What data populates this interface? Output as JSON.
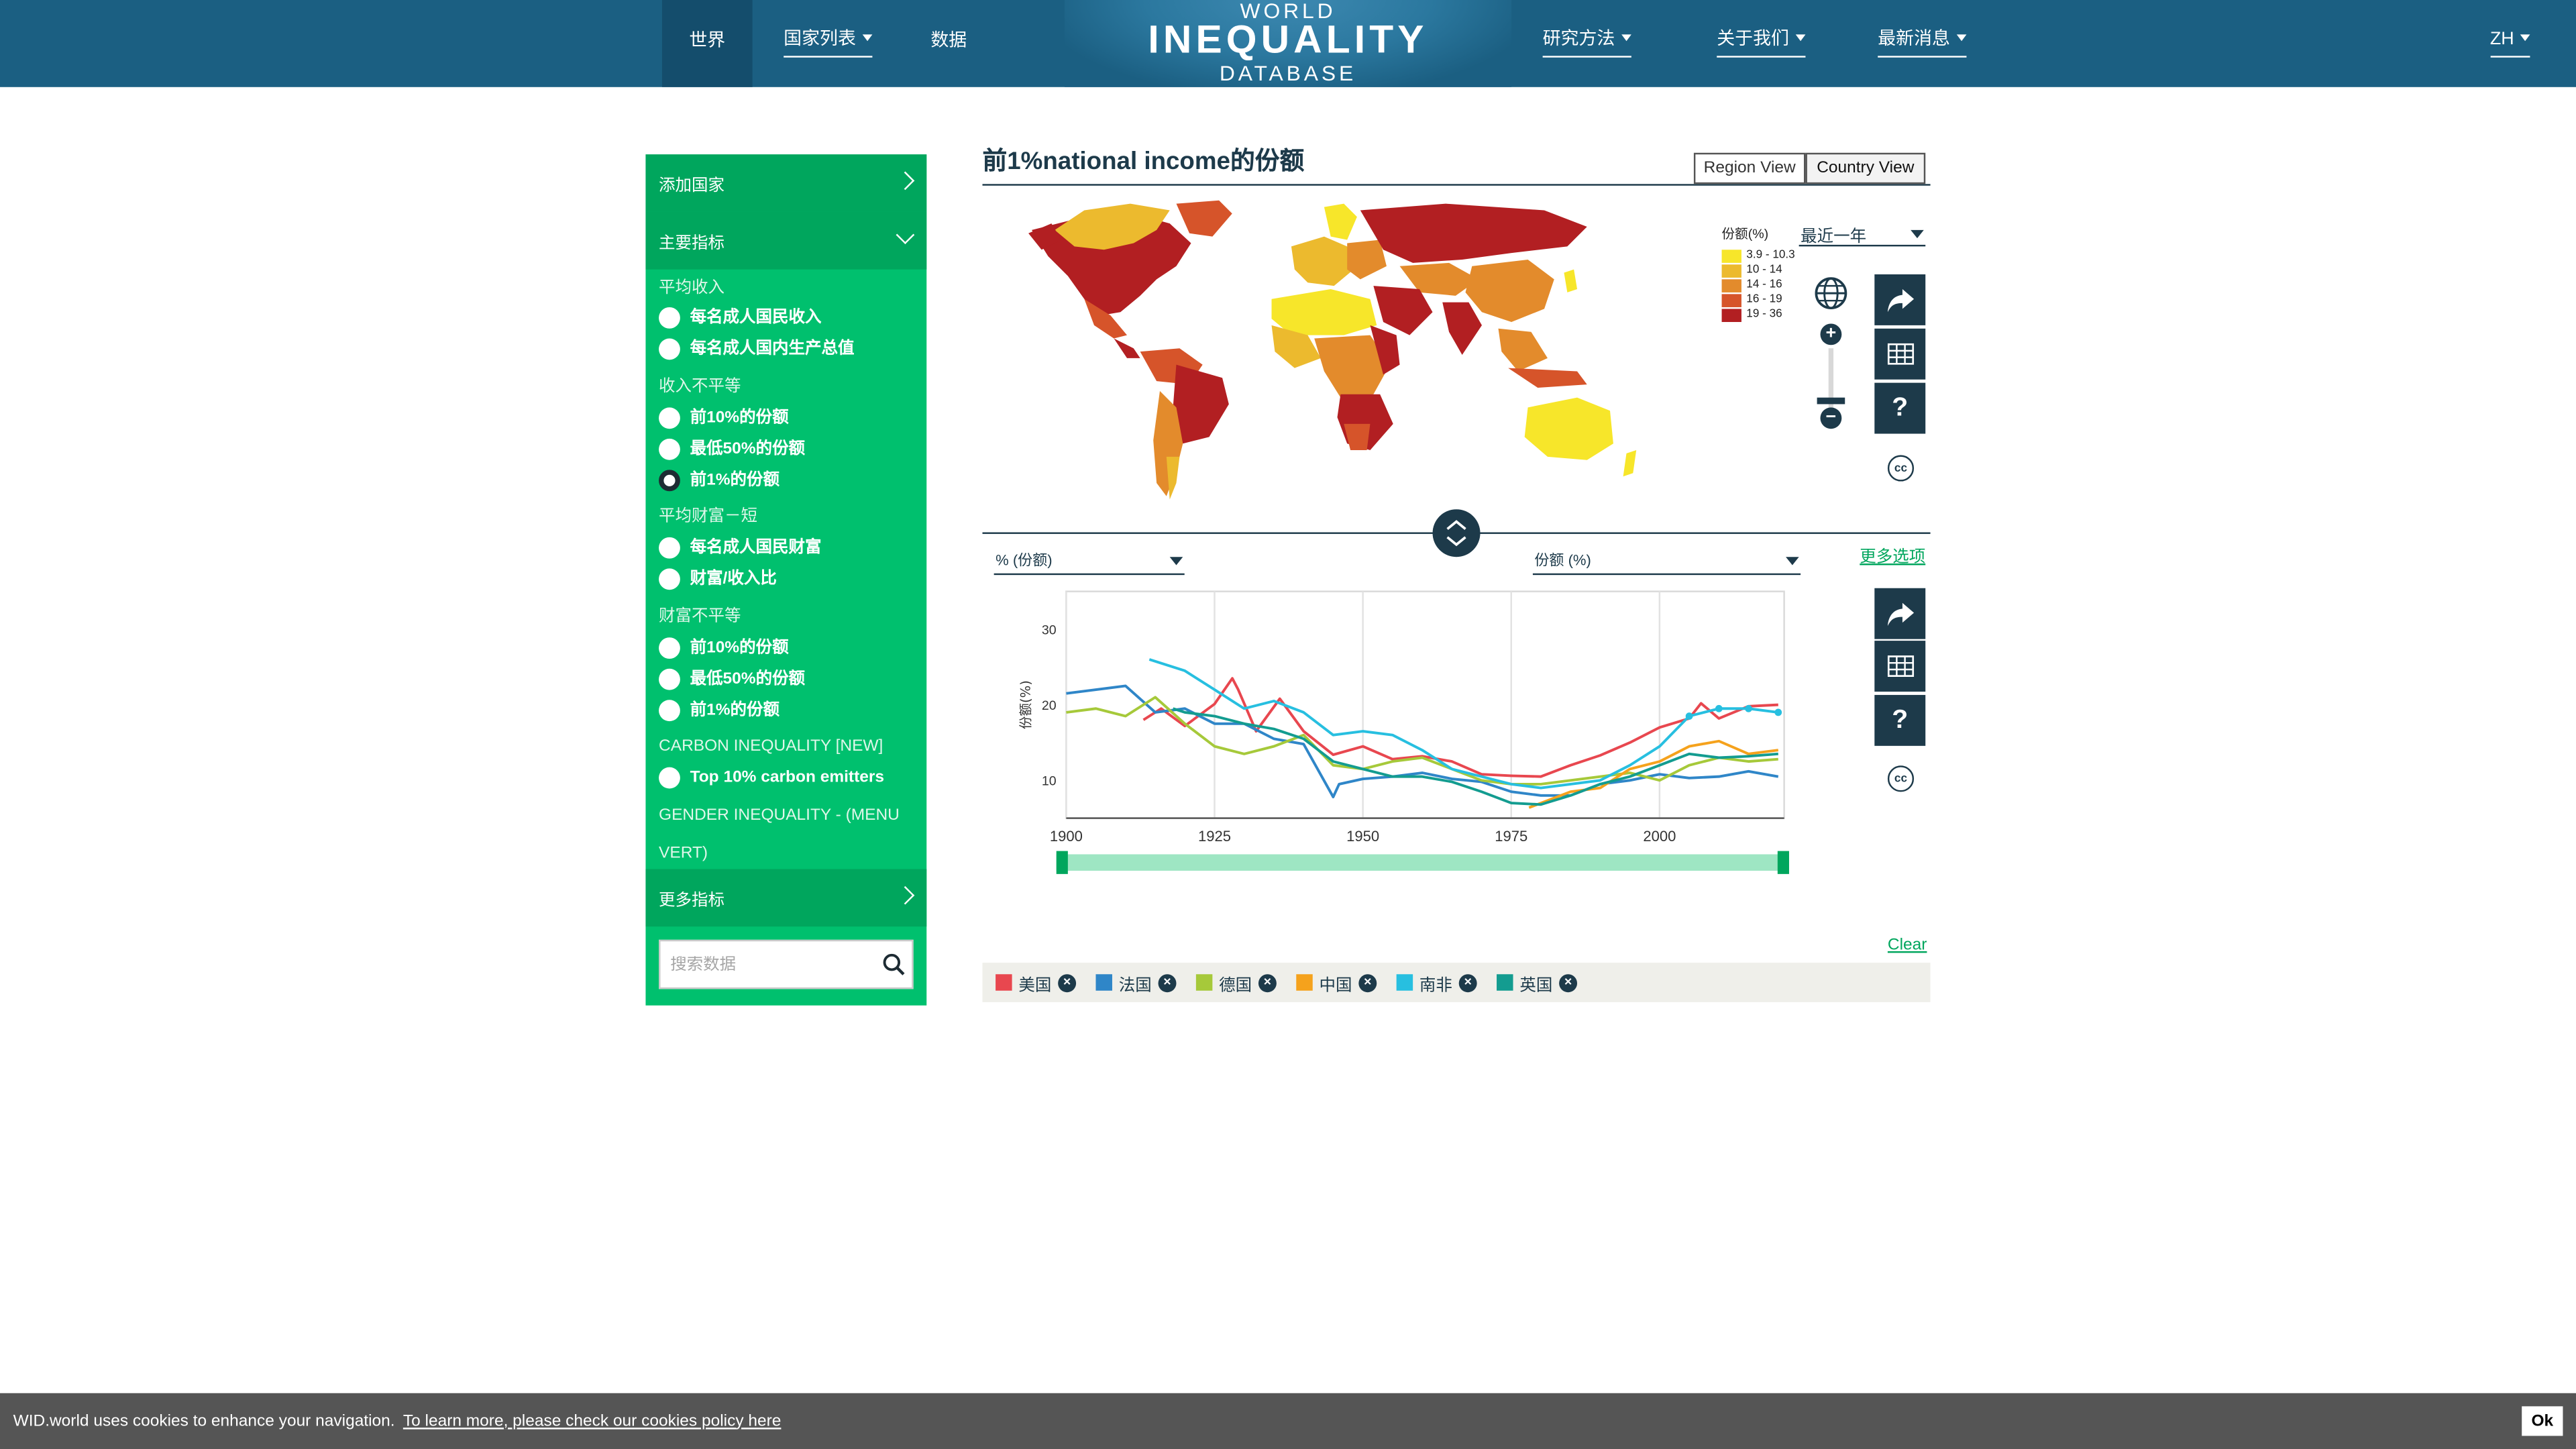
{
  "header": {
    "nav_left": [
      {
        "label": "世界",
        "active": true,
        "dropdown": false
      },
      {
        "label": "国家列表",
        "active": false,
        "dropdown": true
      },
      {
        "label": "数据",
        "active": false,
        "dropdown": false
      }
    ],
    "logo": {
      "line1": "WORLD",
      "line2": "INEQUALITY",
      "line3": "DATABASE"
    },
    "nav_right": [
      {
        "label": "研究方法",
        "dropdown": true
      },
      {
        "label": "关于我们",
        "dropdown": true
      },
      {
        "label": "最新消息",
        "dropdown": true
      }
    ],
    "language": "ZH"
  },
  "sidebar": {
    "add_country": "添加国家",
    "main_indicators": "主要指标",
    "groups": [
      {
        "title": "平均收入",
        "options": [
          {
            "label": "每名成人国民收入",
            "checked": false
          },
          {
            "label": "每名成人国内生产总值",
            "checked": false
          }
        ]
      },
      {
        "title": "收入不平等",
        "options": [
          {
            "label": "前10%的份额",
            "checked": false
          },
          {
            "label": "最低50%的份额",
            "checked": false
          },
          {
            "label": "前1%的份额",
            "checked": true
          }
        ]
      },
      {
        "title": "平均财富－短",
        "options": [
          {
            "label": "每名成人国民财富",
            "checked": false
          },
          {
            "label": "财富/收入比",
            "checked": false
          }
        ]
      },
      {
        "title": "财富不平等",
        "options": [
          {
            "label": "前10%的份额",
            "checked": false
          },
          {
            "label": "最低50%的份额",
            "checked": false
          },
          {
            "label": "前1%的份额",
            "checked": false
          }
        ]
      },
      {
        "title": "CARBON INEQUALITY [NEW]",
        "options": [
          {
            "label": "Top 10% carbon emitters",
            "checked": false
          }
        ]
      },
      {
        "title": "GENDER INEQUALITY - (MENU",
        "title2": "VERT)",
        "options": []
      }
    ],
    "more_indicators": "更多指标",
    "search_placeholder": "搜索数据"
  },
  "main": {
    "title": "前1%national income的份额",
    "views": [
      "Region View",
      "Country View"
    ],
    "active_view": "Country View",
    "map_legend": {
      "title": "份额(%)",
      "items": [
        {
          "label": "3.9 - 10.3",
          "color": "#f7e62a"
        },
        {
          "label": "10 - 14",
          "color": "#ecba2e"
        },
        {
          "label": "14 - 16",
          "color": "#e38b2c"
        },
        {
          "label": "16 - 19",
          "color": "#d6542a"
        },
        {
          "label": "19 - 36",
          "color": "#b21f22"
        }
      ]
    },
    "year_select": "最近一年",
    "selector_left": "% (份额)",
    "selector_right": "份额 (%)",
    "more_options": "更多选项",
    "clear": "Clear"
  },
  "chart_data": {
    "type": "line",
    "ylabel": "份额(%)",
    "xlim": [
      1900,
      2021
    ],
    "ylim": [
      5,
      35
    ],
    "x_ticks": [
      1900,
      1925,
      1950,
      1975,
      2000
    ],
    "y_ticks": [
      10,
      20,
      30
    ],
    "series": [
      {
        "name": "美国",
        "color": "#e8474f",
        "x": [
          1913,
          1916,
          1920,
          1925,
          1928,
          1929,
          1932,
          1936,
          1940,
          1945,
          1950,
          1955,
          1960,
          1965,
          1970,
          1975,
          1980,
          1985,
          1990,
          1995,
          2000,
          2005,
          2007,
          2010,
          2015,
          2020
        ],
        "y": [
          18.0,
          19.5,
          17.2,
          20.1,
          23.5,
          22.0,
          16.5,
          20.8,
          16.5,
          13.4,
          14.5,
          12.8,
          13.2,
          12.5,
          10.8,
          10.6,
          10.5,
          12.0,
          13.3,
          15.0,
          17.0,
          18.2,
          20.2,
          18.2,
          19.8,
          20.0
        ]
      },
      {
        "name": "法国",
        "color": "#2f86c8",
        "x": [
          1900,
          1905,
          1910,
          1915,
          1920,
          1925,
          1930,
          1935,
          1940,
          1945,
          1946,
          1950,
          1955,
          1960,
          1965,
          1970,
          1975,
          1980,
          1985,
          1990,
          1995,
          2000,
          2005,
          2010,
          2015,
          2020
        ],
        "y": [
          21.5,
          22.0,
          22.5,
          19.0,
          19.5,
          17.5,
          17.5,
          15.5,
          14.8,
          7.8,
          9.5,
          10.2,
          10.5,
          11.0,
          10.2,
          9.8,
          8.5,
          8.0,
          8.0,
          9.5,
          10.0,
          10.8,
          10.3,
          10.5,
          11.2,
          10.5
        ]
      },
      {
        "name": "德国",
        "color": "#a6c93a",
        "x": [
          1900,
          1905,
          1910,
          1915,
          1920,
          1925,
          1930,
          1935,
          1940,
          1945,
          1950,
          1955,
          1960,
          1965,
          1970,
          1975,
          1980,
          1985,
          1990,
          1995,
          2000,
          2005,
          2010,
          2015,
          2020
        ],
        "y": [
          19.0,
          19.5,
          18.5,
          21.0,
          17.5,
          14.5,
          13.5,
          14.5,
          16.0,
          12.0,
          11.5,
          12.5,
          13.0,
          11.5,
          10.0,
          9.5,
          9.5,
          10.0,
          10.5,
          11.0,
          10.0,
          12.0,
          13.0,
          12.5,
          12.8
        ]
      },
      {
        "name": "中国",
        "color": "#f5a21c",
        "x": [
          1978,
          1985,
          1990,
          1995,
          2000,
          2005,
          2010,
          2015,
          2020
        ],
        "y": [
          6.4,
          8.5,
          9.0,
          11.5,
          12.5,
          14.5,
          15.2,
          13.5,
          14.0
        ]
      },
      {
        "name": "南非",
        "color": "#27bfe0",
        "x": [
          1914,
          1920,
          1925,
          1930,
          1935,
          1940,
          1945,
          1950,
          1955,
          1960,
          1965,
          1970,
          1975,
          1980,
          1985,
          1990,
          1995,
          2000,
          2005,
          2010,
          2015,
          2020
        ],
        "y": [
          26.0,
          24.5,
          22.0,
          19.5,
          20.5,
          19.0,
          16.0,
          16.5,
          16.0,
          14.0,
          11.5,
          10.5,
          9.5,
          9.0,
          9.5,
          10.0,
          12.0,
          14.5,
          18.5,
          19.5,
          19.5,
          19.0
        ]
      },
      {
        "name": "英国",
        "color": "#139c90",
        "x": [
          1918,
          1920,
          1925,
          1930,
          1935,
          1940,
          1945,
          1950,
          1955,
          1960,
          1965,
          1970,
          1975,
          1980,
          1985,
          1990,
          1995,
          2000,
          2005,
          2010,
          2015,
          2020
        ],
        "y": [
          19.5,
          19.0,
          18.5,
          17.5,
          16.8,
          15.5,
          12.5,
          11.5,
          10.5,
          10.5,
          9.8,
          8.5,
          7.0,
          6.8,
          8.0,
          9.5,
          10.5,
          12.0,
          13.5,
          13.0,
          13.2,
          13.5
        ]
      }
    ]
  },
  "cookie": {
    "text": "WID.world uses cookies to enhance your navigation.",
    "link": "To learn more, please check our cookies policy here",
    "ok": "Ok"
  }
}
